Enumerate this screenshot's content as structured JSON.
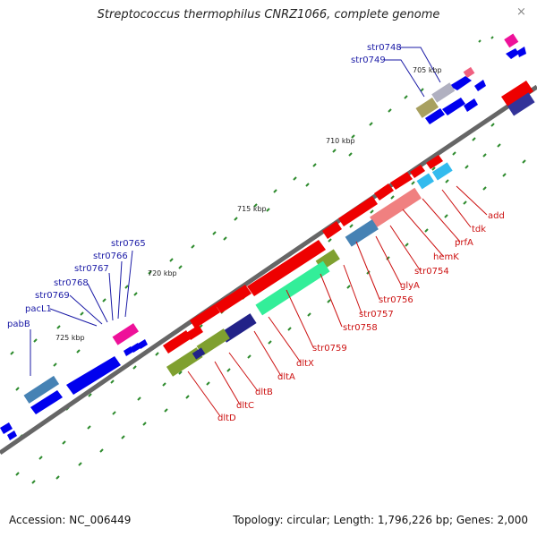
{
  "title": "Streptococcus thermophilus CNRZ1066, complete genome",
  "close_symbol": "×",
  "footer": {
    "accession": "Accession: NC_006449",
    "summary": "Topology: circular; Length: 1,796,226 bp; Genes: 2,000"
  },
  "kbp_labels": [
    "705 kbp",
    "710 kbp",
    "715 kbp",
    "720 kbp",
    "725 kbp"
  ],
  "upper_gene_labels": [
    "str0748",
    "str0749",
    "str0765",
    "str0766",
    "str0767",
    "str0768",
    "str0769",
    "pacL1",
    "pabB"
  ],
  "lower_gene_labels": [
    "add",
    "tdk",
    "prfA",
    "hemK",
    "str0754",
    "glyA",
    "str0756",
    "str0757",
    "str0758",
    "str0759",
    "dltX",
    "dltA",
    "dltB",
    "dltC",
    "dltD"
  ],
  "colors": {
    "backbone": "#666666",
    "forward": "#0000ee",
    "reverse": "#ee0000",
    "tick": "#2e8b2e",
    "label_upper": "#1a1aa6",
    "label_lower": "#cc1111"
  }
}
